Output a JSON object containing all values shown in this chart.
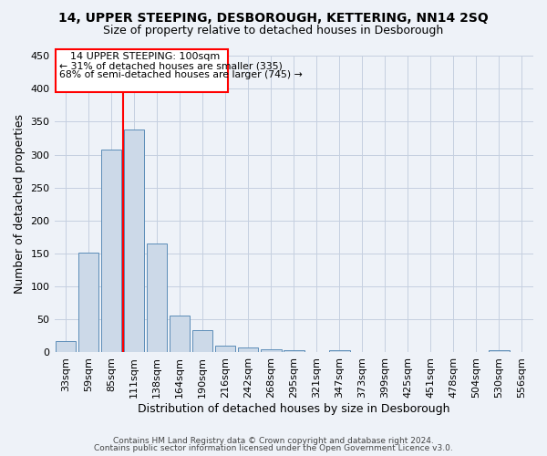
{
  "title": "14, UPPER STEEPING, DESBOROUGH, KETTERING, NN14 2SQ",
  "subtitle": "Size of property relative to detached houses in Desborough",
  "xlabel": "Distribution of detached houses by size in Desborough",
  "ylabel": "Number of detached properties",
  "bar_color": "#ccd9e8",
  "bar_edge_color": "#5b8db8",
  "background_color": "#eef2f8",
  "categories": [
    "33sqm",
    "59sqm",
    "85sqm",
    "111sqm",
    "138sqm",
    "164sqm",
    "190sqm",
    "216sqm",
    "242sqm",
    "268sqm",
    "295sqm",
    "321sqm",
    "347sqm",
    "373sqm",
    "399sqm",
    "425sqm",
    "451sqm",
    "478sqm",
    "504sqm",
    "530sqm",
    "556sqm"
  ],
  "values": [
    17,
    152,
    307,
    338,
    165,
    56,
    34,
    10,
    8,
    5,
    4,
    0,
    4,
    0,
    0,
    0,
    0,
    0,
    0,
    4,
    0
  ],
  "ylim": [
    0,
    450
  ],
  "yticks": [
    0,
    50,
    100,
    150,
    200,
    250,
    300,
    350,
    400,
    450
  ],
  "property_bin_index": 2.5,
  "annotation_title": "14 UPPER STEEPING: 100sqm",
  "annotation_line1": "← 31% of detached houses are smaller (335)",
  "annotation_line2": "68% of semi-detached houses are larger (745) →",
  "footer1": "Contains HM Land Registry data © Crown copyright and database right 2024.",
  "footer2": "Contains public sector information licensed under the Open Government Licence v3.0.",
  "grid_color": "#c5cfe0",
  "title_fontsize": 10,
  "subtitle_fontsize": 9
}
